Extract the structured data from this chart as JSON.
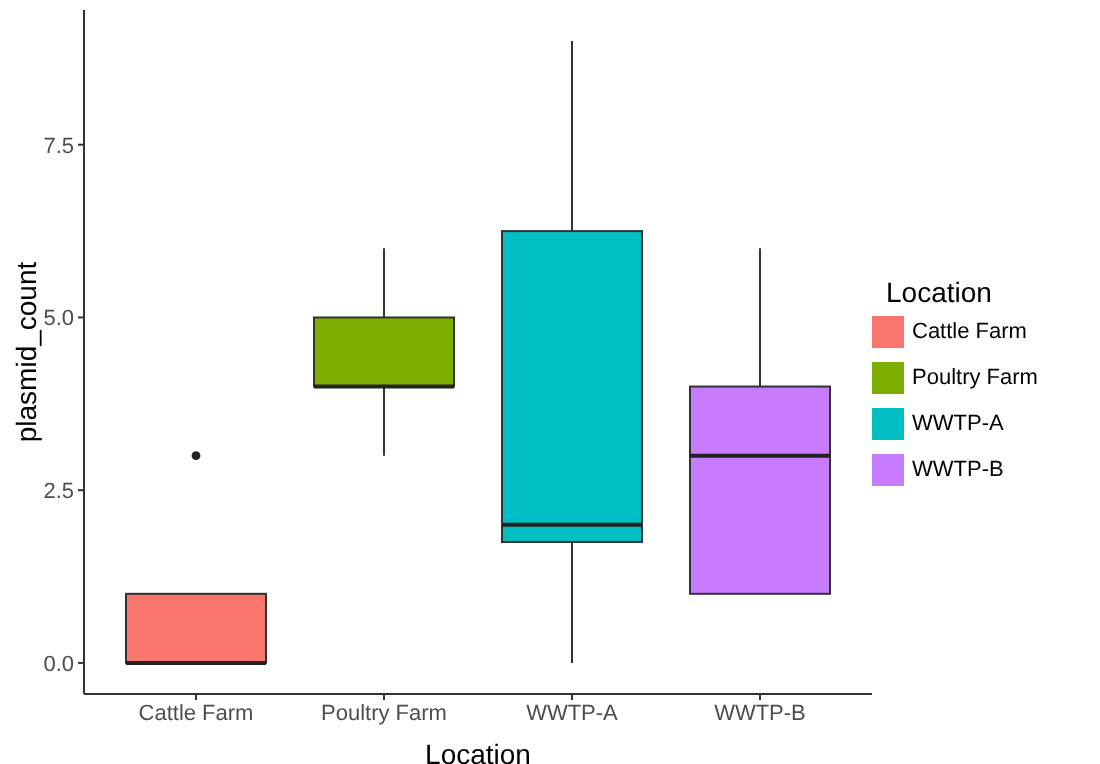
{
  "chart_data": {
    "type": "box",
    "xlabel": "Location",
    "ylabel": "plasmid_count",
    "legend_title": "Location",
    "categories": [
      "Cattle Farm",
      "Poultry Farm",
      "WWTP-A",
      "WWTP-B"
    ],
    "series": [
      {
        "name": "Cattle Farm",
        "color": "#f8766d",
        "boxes": [
          {
            "low": 0,
            "q1": 0,
            "median": 0,
            "q3": 1,
            "high": 1,
            "outliers": [
              3
            ]
          },
          null,
          null,
          null
        ]
      },
      {
        "name": "Poultry Farm",
        "color": "#7cae00",
        "boxes": [
          null,
          {
            "low": 3,
            "q1": 4,
            "median": 4,
            "q3": 5,
            "high": 6
          },
          null,
          null
        ]
      },
      {
        "name": "WWTP-A",
        "color": "#00bfc4",
        "boxes": [
          null,
          null,
          {
            "low": 0,
            "q1": 1.75,
            "median": 2,
            "q3": 6.25,
            "high": 9
          },
          null
        ]
      },
      {
        "name": "WWTP-B",
        "color": "#c77cff",
        "boxes": [
          null,
          null,
          null,
          {
            "low": 1,
            "q1": 1,
            "median": 3,
            "q3": 4,
            "high": 6
          }
        ]
      }
    ],
    "ylim": [
      -0.45,
      9.45
    ],
    "yticks": [
      {
        "value": 0,
        "label": "0.0"
      },
      {
        "value": 2.5,
        "label": "2.5"
      },
      {
        "value": 5,
        "label": "5.0"
      },
      {
        "value": 7.5,
        "label": "7.5"
      }
    ],
    "grid": false,
    "legend": "right"
  }
}
